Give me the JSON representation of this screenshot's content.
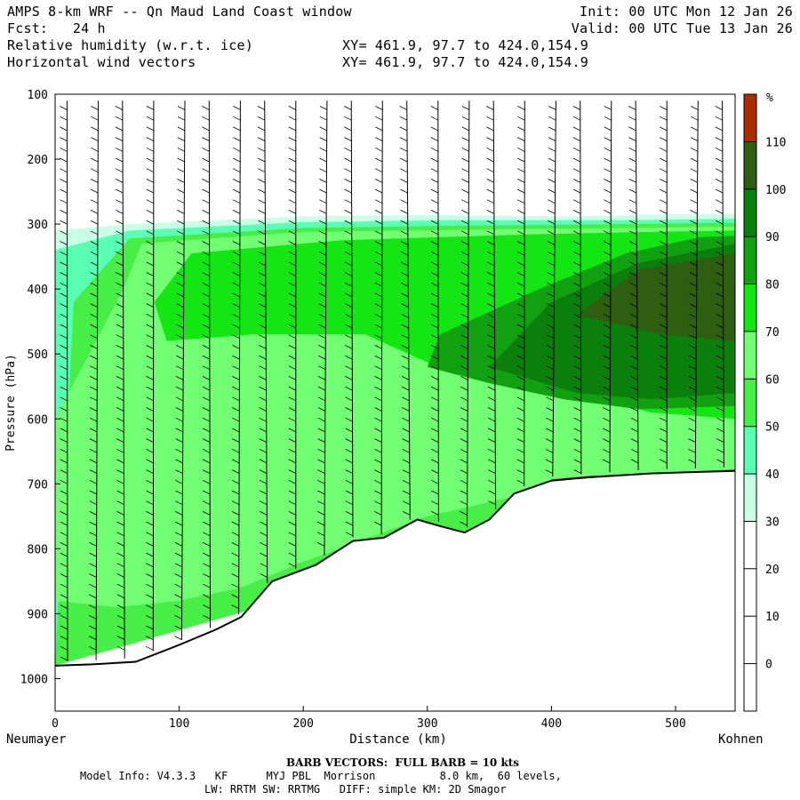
{
  "header": {
    "line1_left": "AMPS 8-km WRF -- Qn Maud Land Coast window",
    "line1_right": "Init: 00 UTC Mon 12 Jan 26",
    "line2_left": "Fcst:   24 h",
    "line2_right": "Valid: 00 UTC Tue 13 Jan 26",
    "line3_left": "Relative humidity (w.r.t. ice)",
    "line3_right": "XY= 461.9, 97.7 to 424.0,154.9",
    "line4_left": "Horizontal wind vectors",
    "line4_right": "XY= 461.9, 97.7 to 424.0,154.9"
  },
  "footer": {
    "barb_note": "BARB VECTORS:  FULL BARB = 10 kts",
    "model_line1": "Model Info: V4.3.3   KF      MYJ PBL  Morrison          8.0 km,  60 levels,",
    "model_line2": "LW: RRTM SW: RRTMG   DIFF: simple KM: 2D Smagor"
  },
  "chart_data": {
    "type": "heatmap",
    "title": "Relative humidity (w.r.t. ice)",
    "xlabel": "Distance (km)",
    "ylabel": "Pressure (hPa)",
    "x_start_label": "Neumayer",
    "x_end_label": "Kohnen",
    "xlim": [
      0,
      548
    ],
    "ylim": [
      1050,
      100
    ],
    "x_ticks": [
      0,
      100,
      200,
      300,
      400,
      500
    ],
    "y_ticks": [
      100,
      200,
      300,
      400,
      500,
      600,
      700,
      800,
      900,
      1000
    ],
    "colorbar": {
      "unit": "%",
      "levels": [
        0,
        10,
        20,
        30,
        40,
        50,
        60,
        70,
        80,
        90,
        100,
        110
      ],
      "colors": [
        "#ffffff",
        "#ffffff",
        "#ffffff",
        "#ffffff",
        "#c8ffe6",
        "#5affb4",
        "#46ee46",
        "#73ff73",
        "#14e614",
        "#10a010",
        "#0b7f0b",
        "#2e5e10",
        "#aa2e00"
      ]
    },
    "terrain_surface": [
      {
        "x": 0,
        "p": 980
      },
      {
        "x": 30,
        "p": 978
      },
      {
        "x": 65,
        "p": 974
      },
      {
        "x": 100,
        "p": 948
      },
      {
        "x": 130,
        "p": 924
      },
      {
        "x": 150,
        "p": 905
      },
      {
        "x": 175,
        "p": 850
      },
      {
        "x": 210,
        "p": 825
      },
      {
        "x": 240,
        "p": 788
      },
      {
        "x": 265,
        "p": 783
      },
      {
        "x": 292,
        "p": 755
      },
      {
        "x": 310,
        "p": 765
      },
      {
        "x": 330,
        "p": 775
      },
      {
        "x": 350,
        "p": 755
      },
      {
        "x": 370,
        "p": 715
      },
      {
        "x": 400,
        "p": 695
      },
      {
        "x": 430,
        "p": 690
      },
      {
        "x": 480,
        "p": 684
      },
      {
        "x": 548,
        "p": 680
      }
    ],
    "rh_regions": [
      {
        "level": 30,
        "polygon": [
          [
            0,
            310
          ],
          [
            60,
            300
          ],
          [
            200,
            288
          ],
          [
            300,
            286
          ],
          [
            420,
            288
          ],
          [
            500,
            285
          ],
          [
            548,
            284
          ],
          [
            548,
            680
          ],
          [
            0,
            980
          ]
        ]
      },
      {
        "level": 40,
        "polygon": [
          [
            0,
            340
          ],
          [
            60,
            310
          ],
          [
            200,
            297
          ],
          [
            320,
            294
          ],
          [
            450,
            294
          ],
          [
            548,
            292
          ],
          [
            548,
            680
          ],
          [
            0,
            980
          ]
        ]
      },
      {
        "level": 50,
        "polygon": [
          [
            15,
            420
          ],
          [
            60,
            322
          ],
          [
            200,
            306
          ],
          [
            340,
            302
          ],
          [
            460,
            300
          ],
          [
            548,
            298
          ],
          [
            548,
            680
          ],
          [
            0,
            980
          ]
        ]
      },
      {
        "level": 60,
        "polygon": [
          [
            55,
            400
          ],
          [
            70,
            330
          ],
          [
            200,
            312
          ],
          [
            360,
            308
          ],
          [
            470,
            306
          ],
          [
            548,
            304
          ],
          [
            548,
            680
          ],
          [
            380,
            715
          ],
          [
            300,
            750
          ],
          [
            200,
            820
          ],
          [
            150,
            860
          ],
          [
            100,
            880
          ],
          [
            50,
            890
          ],
          [
            0,
            880
          ],
          [
            0,
            600
          ]
        ]
      },
      {
        "level": 70,
        "polygon": [
          [
            80,
            420
          ],
          [
            110,
            345
          ],
          [
            230,
            325
          ],
          [
            380,
            316
          ],
          [
            480,
            312
          ],
          [
            548,
            310
          ],
          [
            548,
            600
          ],
          [
            480,
            590
          ],
          [
            420,
            560
          ],
          [
            320,
            530
          ],
          [
            250,
            470
          ],
          [
            160,
            470
          ],
          [
            90,
            480
          ]
        ]
      },
      {
        "level": 80,
        "polygon": [
          [
            310,
            470
          ],
          [
            390,
            400
          ],
          [
            460,
            345
          ],
          [
            520,
            320
          ],
          [
            548,
            318
          ],
          [
            548,
            580
          ],
          [
            470,
            585
          ],
          [
            410,
            570
          ],
          [
            350,
            545
          ],
          [
            300,
            520
          ]
        ]
      },
      {
        "level": 90,
        "polygon": [
          [
            350,
            520
          ],
          [
            400,
            420
          ],
          [
            470,
            360
          ],
          [
            548,
            330
          ],
          [
            548,
            560
          ],
          [
            480,
            570
          ],
          [
            420,
            560
          ]
        ]
      },
      {
        "level": 100,
        "polygon": [
          [
            420,
            440
          ],
          [
            470,
            370
          ],
          [
            548,
            345
          ],
          [
            548,
            480
          ],
          [
            490,
            470
          ]
        ]
      },
      {
        "level": 110,
        "polygon": [
          [
            548,
            678
          ],
          [
            430,
            688
          ],
          [
            400,
            693
          ],
          [
            400,
            698
          ],
          [
            548,
            683
          ]
        ]
      }
    ]
  }
}
